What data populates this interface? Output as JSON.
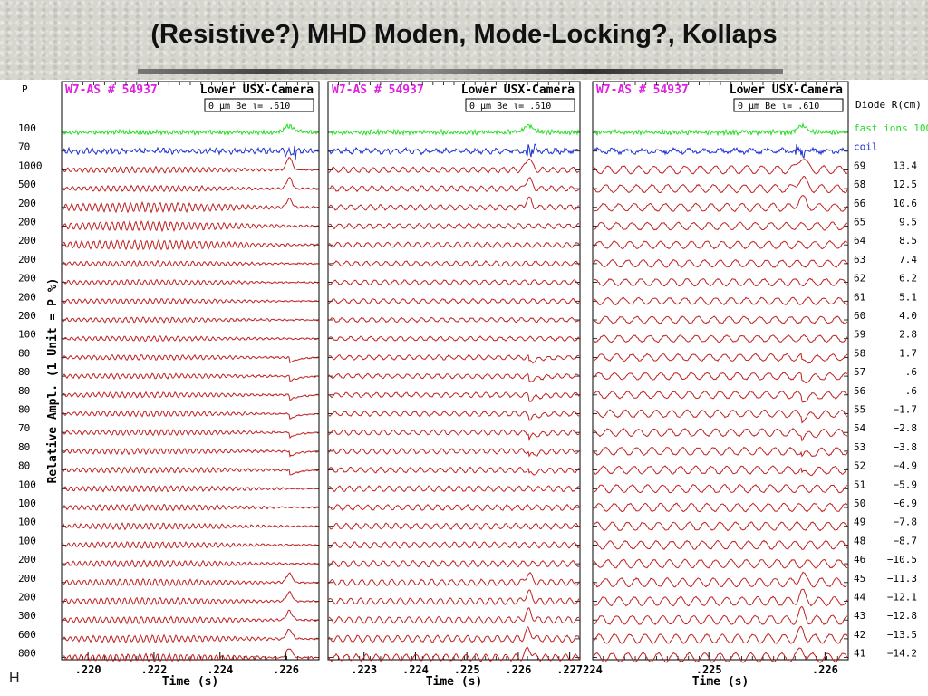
{
  "slide": {
    "title": "(Resistive?) MHD Moden, Mode-Locking?, Kollaps",
    "footer_letter": "H"
  },
  "colors": {
    "fast_ions": "#22dd22",
    "coil": "#1a2fd0",
    "diode": "#c02020",
    "header_pink": "#e020e0"
  },
  "chart_data": {
    "type": "line",
    "header_left": "W7-AS # 54937",
    "header_right": "Lower USX-Camera",
    "filter_label": "0  µm Be ι= .610",
    "xlabel": "Time (s)",
    "ylabel": "Relative Ampl. (1 Unit = P %)",
    "p_header": "P",
    "p_values": [
      "100",
      "70",
      "1000",
      "500",
      "200",
      "200",
      "200",
      "200",
      "200",
      "200",
      "200",
      "100",
      "80",
      "80",
      "80",
      "80",
      "70",
      "80",
      "80",
      "100",
      "100",
      "100",
      "100",
      "200",
      "200",
      "200",
      "300",
      "600",
      "800"
    ],
    "diode_header": "Diode R(cm)",
    "traces": [
      {
        "name": "fast ions 100",
        "r": ""
      },
      {
        "name": "coil",
        "r": ""
      },
      {
        "name": "69",
        "r": "13.4"
      },
      {
        "name": "68",
        "r": "12.5"
      },
      {
        "name": "66",
        "r": "10.6"
      },
      {
        "name": "65",
        "r": "9.5"
      },
      {
        "name": "64",
        "r": "8.5"
      },
      {
        "name": "63",
        "r": "7.4"
      },
      {
        "name": "62",
        "r": "6.2"
      },
      {
        "name": "61",
        "r": "5.1"
      },
      {
        "name": "60",
        "r": "4.0"
      },
      {
        "name": "59",
        "r": "2.8"
      },
      {
        "name": "58",
        "r": "1.7"
      },
      {
        "name": "57",
        "r": ".6"
      },
      {
        "name": "56",
        "r": "−.6"
      },
      {
        "name": "55",
        "r": "−1.7"
      },
      {
        "name": "54",
        "r": "−2.8"
      },
      {
        "name": "53",
        "r": "−3.8"
      },
      {
        "name": "52",
        "r": "−4.9"
      },
      {
        "name": "51",
        "r": "−5.9"
      },
      {
        "name": "50",
        "r": "−6.9"
      },
      {
        "name": "49",
        "r": "−7.8"
      },
      {
        "name": "48",
        "r": "−8.7"
      },
      {
        "name": "46",
        "r": "−10.5"
      },
      {
        "name": "45",
        "r": "−11.3"
      },
      {
        "name": "44",
        "r": "−12.1"
      },
      {
        "name": "43",
        "r": "−12.8"
      },
      {
        "name": "42",
        "r": "−13.5"
      },
      {
        "name": "41",
        "r": "−14.2"
      }
    ],
    "panels": [
      {
        "xlim": [
          0.2192,
          0.227
        ],
        "crash": 0.2261,
        "ticks": [
          ".220",
          ".222",
          ".224",
          ".226"
        ],
        "tick_values": [
          0.22,
          0.222,
          0.224,
          0.226
        ],
        "freq": 2.2
      },
      {
        "xlim": [
          0.2223,
          0.2272
        ],
        "crash": 0.2262,
        "ticks": [
          ".223",
          ".224",
          ".225",
          ".226",
          ".227"
        ],
        "tick_values": [
          0.223,
          0.224,
          0.225,
          0.226,
          0.227
        ],
        "freq": 1.3
      },
      {
        "xlim": [
          0.224,
          0.2262
        ],
        "crash": 0.2258,
        "ticks": [
          "224",
          ".225",
          ".226"
        ],
        "tick_values": [
          0.224,
          0.225,
          0.226
        ],
        "freq": 0.6
      }
    ]
  }
}
